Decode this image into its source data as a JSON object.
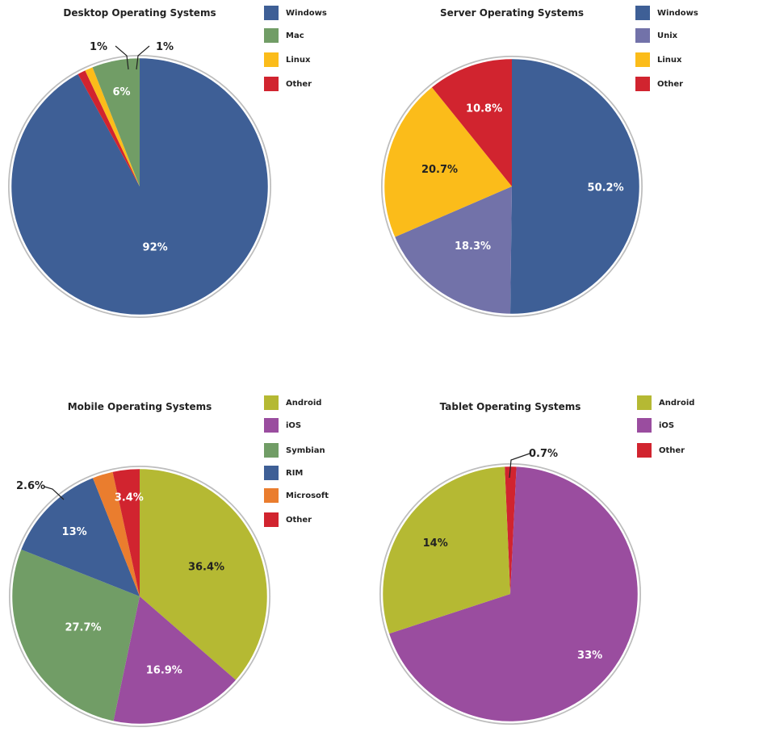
{
  "chart_data": [
    {
      "type": "pie",
      "title": "Desktop Operating Systems",
      "categories": [
        "Windows",
        "Mac",
        "Linux",
        "Other"
      ],
      "values": [
        92,
        6,
        1,
        1
      ],
      "labels": [
        "92%",
        "6%",
        "1%",
        "1%"
      ],
      "colors": [
        "#3e5f96",
        "#719d66",
        "#fbbc1a",
        "#d1242f"
      ],
      "legend": "right"
    },
    {
      "type": "pie",
      "title": "Server Operating Systems",
      "categories": [
        "Windows",
        "Unix",
        "Linux",
        "Other"
      ],
      "values": [
        50.2,
        18.3,
        20.7,
        10.8
      ],
      "labels": [
        "50.2%",
        "18.3%",
        "20.7%",
        "10.8%"
      ],
      "colors": [
        "#3e5f96",
        "#7272a9",
        "#fbbc1a",
        "#d1242f"
      ],
      "legend": "right"
    },
    {
      "type": "pie",
      "title": "Mobile Operating Systems",
      "categories": [
        "Android",
        "iOS",
        "Symbian",
        "RIM",
        "Microsoft",
        "Other"
      ],
      "values": [
        36.4,
        16.9,
        27.7,
        13,
        2.6,
        3.4
      ],
      "labels": [
        "36.4%",
        "16.9%",
        "27.7%",
        "13%",
        "2.6%",
        "3.4%"
      ],
      "colors": [
        "#b5b933",
        "#9a4d9f",
        "#719d66",
        "#3e5f96",
        "#ea7d2e",
        "#d1242f"
      ],
      "legend": "right"
    },
    {
      "type": "pie",
      "title": "Tablet Operating Systems",
      "categories": [
        "Android",
        "iOS",
        "Other"
      ],
      "values": [
        14,
        33,
        0.7
      ],
      "labels": [
        "14%",
        "33%",
        "0.7%"
      ],
      "colors": [
        "#b5b933",
        "#9a4d9f",
        "#d1242f"
      ],
      "legend": "right"
    }
  ]
}
